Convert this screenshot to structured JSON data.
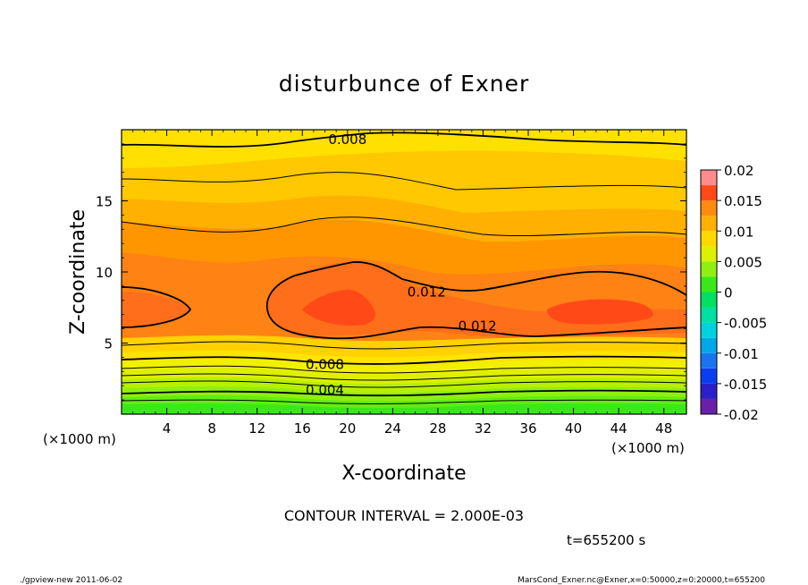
{
  "chart_data": {
    "type": "heatmap",
    "title": "disturbunce of Exner",
    "xlabel": "X-coordinate",
    "ylabel": "Z-coordinate",
    "x_unit_left": "(×1000 m)",
    "x_unit_right": "(×1000 m)",
    "xlim": [
      0,
      50
    ],
    "ylim": [
      0,
      20
    ],
    "xticks": [
      4,
      8,
      12,
      16,
      20,
      24,
      28,
      32,
      36,
      40,
      44,
      48
    ],
    "yticks": [
      5,
      10,
      15
    ],
    "contour_interval_text": "CONTOUR INTERVAL = 2.000E-03",
    "time_text": "t=655200 s",
    "contour_labels": [
      {
        "text": "0.008",
        "x": 20,
        "z": 19.3
      },
      {
        "text": "0.012",
        "x": 27,
        "z": 8.6
      },
      {
        "text": "0.012",
        "x": 31.5,
        "z": 6.2
      },
      {
        "text": "0.008",
        "x": 18,
        "z": 3.5
      },
      {
        "text": "0.004",
        "x": 18,
        "z": 1.7
      }
    ],
    "colorbar": {
      "range": [
        -0.02,
        0.02
      ],
      "tick_labels": [
        "0.02",
        "0.015",
        "0.01",
        "0.005",
        "0",
        "-0.005",
        "-0.01",
        "-0.015",
        "-0.02"
      ],
      "levels": [
        {
          "min": -0.02,
          "max": -0.0175,
          "color": "#6a1fa8"
        },
        {
          "min": -0.0175,
          "max": -0.015,
          "color": "#2a1fc8"
        },
        {
          "min": -0.015,
          "max": -0.0125,
          "color": "#0b3df0"
        },
        {
          "min": -0.0125,
          "max": -0.01,
          "color": "#1a74f0"
        },
        {
          "min": -0.01,
          "max": -0.0075,
          "color": "#00a8e8"
        },
        {
          "min": -0.0075,
          "max": -0.005,
          "color": "#00d2e0"
        },
        {
          "min": -0.005,
          "max": -0.0025,
          "color": "#00e0a0"
        },
        {
          "min": -0.0025,
          "max": 0,
          "color": "#00e060"
        },
        {
          "min": 0,
          "max": 0.0025,
          "color": "#3ae81a"
        },
        {
          "min": 0.0025,
          "max": 0.005,
          "color": "#8ef010"
        },
        {
          "min": 0.005,
          "max": 0.0075,
          "color": "#dcf000"
        },
        {
          "min": 0.0075,
          "max": 0.01,
          "color": "#ffd800"
        },
        {
          "min": 0.01,
          "max": 0.0125,
          "color": "#ffb000"
        },
        {
          "min": 0.0125,
          "max": 0.015,
          "color": "#ff8a10"
        },
        {
          "min": 0.015,
          "max": 0.0175,
          "color": "#ff4a18"
        },
        {
          "min": 0.0175,
          "max": 0.02,
          "color": "#ff8c8c"
        }
      ]
    }
  },
  "footer": {
    "left": "./gpview-new   2011-06-02",
    "right": "MarsCond_Exner.nc@Exner,x=0:50000,z=0:20000,t=655200"
  }
}
